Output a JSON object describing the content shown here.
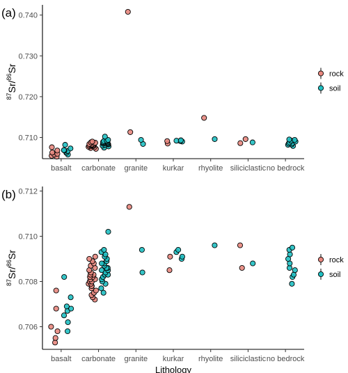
{
  "colors": {
    "rock": "#E8877E",
    "soil": "#1FBFC2",
    "outline": "#000000"
  },
  "chart_data": [
    {
      "panel_label": "(a)",
      "type": "scatter",
      "xlabel": "",
      "ylabel": {
        "super1": "87",
        "base1": "Sr/",
        "super2": "86",
        "base2": "Sr"
      },
      "categories": [
        "basalt",
        "carbonate",
        "granite",
        "kurkar",
        "rhyolite",
        "siliciclastic",
        "no bedrock"
      ],
      "ylim": [
        0.7048,
        0.7425
      ],
      "yticks": [
        "0.710",
        "0.720",
        "0.730",
        "0.740"
      ],
      "legend": {
        "position": "right",
        "entries": [
          "rock",
          "soil"
        ]
      },
      "grid": false,
      "series": [
        {
          "name": "rock",
          "points": [
            [
              "basalt",
              0.7053
            ],
            [
              "basalt",
              0.7055
            ],
            [
              "basalt",
              0.7058
            ],
            [
              "basalt",
              0.706
            ],
            [
              "basalt",
              0.7063
            ],
            [
              "basalt",
              0.7068
            ],
            [
              "basalt",
              0.7076
            ],
            [
              "carbonate",
              0.7072
            ],
            [
              "carbonate",
              0.7074
            ],
            [
              "carbonate",
              0.7076
            ],
            [
              "carbonate",
              0.7077
            ],
            [
              "carbonate",
              0.7078
            ],
            [
              "carbonate",
              0.7079
            ],
            [
              "carbonate",
              0.708
            ],
            [
              "carbonate",
              0.708
            ],
            [
              "carbonate",
              0.7081
            ],
            [
              "carbonate",
              0.7081
            ],
            [
              "carbonate",
              0.7082
            ],
            [
              "carbonate",
              0.7083
            ],
            [
              "carbonate",
              0.7084
            ],
            [
              "carbonate",
              0.7085
            ],
            [
              "carbonate",
              0.7087
            ],
            [
              "carbonate",
              0.7088
            ],
            [
              "carbonate",
              0.709
            ],
            [
              "granite",
              0.7113
            ],
            [
              "granite",
              0.7408
            ],
            [
              "kurkar",
              0.7085
            ],
            [
              "kurkar",
              0.7091
            ],
            [
              "rhyolite",
              0.7148
            ],
            [
              "siliciclastic",
              0.7086
            ],
            [
              "siliciclastic",
              0.7096
            ]
          ]
        },
        {
          "name": "soil",
          "points": [
            [
              "basalt",
              0.7058
            ],
            [
              "basalt",
              0.7062
            ],
            [
              "basalt",
              0.7065
            ],
            [
              "basalt",
              0.7067
            ],
            [
              "basalt",
              0.7068
            ],
            [
              "basalt",
              0.7069
            ],
            [
              "basalt",
              0.7073
            ],
            [
              "basalt",
              0.7082
            ],
            [
              "carbonate",
              0.7075
            ],
            [
              "carbonate",
              0.7078
            ],
            [
              "carbonate",
              0.708
            ],
            [
              "carbonate",
              0.7082
            ],
            [
              "carbonate",
              0.7083
            ],
            [
              "carbonate",
              0.7084
            ],
            [
              "carbonate",
              0.7085
            ],
            [
              "carbonate",
              0.7086
            ],
            [
              "carbonate",
              0.7086
            ],
            [
              "carbonate",
              0.7087
            ],
            [
              "carbonate",
              0.7088
            ],
            [
              "carbonate",
              0.7089
            ],
            [
              "carbonate",
              0.709
            ],
            [
              "carbonate",
              0.7091
            ],
            [
              "carbonate",
              0.7092
            ],
            [
              "carbonate",
              0.7094
            ],
            [
              "carbonate",
              0.7102
            ],
            [
              "granite",
              0.7084
            ],
            [
              "granite",
              0.7094
            ],
            [
              "kurkar",
              0.709
            ],
            [
              "kurkar",
              0.7091
            ],
            [
              "kurkar",
              0.7092
            ],
            [
              "kurkar",
              0.7093
            ],
            [
              "rhyolite",
              0.7096
            ],
            [
              "siliciclastic",
              0.7088
            ],
            [
              "no bedrock",
              0.7079
            ],
            [
              "no bedrock",
              0.7082
            ],
            [
              "no bedrock",
              0.7083
            ],
            [
              "no bedrock",
              0.7085
            ],
            [
              "no bedrock",
              0.7086
            ],
            [
              "no bedrock",
              0.7088
            ],
            [
              "no bedrock",
              0.709
            ],
            [
              "no bedrock",
              0.7092
            ],
            [
              "no bedrock",
              0.7094
            ],
            [
              "no bedrock",
              0.7095
            ]
          ]
        }
      ]
    },
    {
      "panel_label": "(b)",
      "type": "scatter",
      "xlabel": "Lithology",
      "ylabel": {
        "super1": "87",
        "base1": "Sr/",
        "super2": "86",
        "base2": "Sr"
      },
      "categories": [
        "basalt",
        "carbonate",
        "granite",
        "kurkar",
        "rhyolite",
        "siliciclastic",
        "no bedrock"
      ],
      "ylim": [
        0.705,
        0.7122
      ],
      "yticks": [
        "0.706",
        "0.708",
        "0.710",
        "0.712"
      ],
      "legend": {
        "position": "right",
        "entries": [
          "rock",
          "soil"
        ]
      },
      "grid": false,
      "series": [
        {
          "name": "rock",
          "points": [
            [
              "basalt",
              0.7053
            ],
            [
              "basalt",
              0.7055
            ],
            [
              "basalt",
              0.7058
            ],
            [
              "basalt",
              0.706
            ],
            [
              "basalt",
              0.7068
            ],
            [
              "basalt",
              0.7076
            ],
            [
              "carbonate",
              0.7072
            ],
            [
              "carbonate",
              0.7073
            ],
            [
              "carbonate",
              0.7074
            ],
            [
              "carbonate",
              0.7075
            ],
            [
              "carbonate",
              0.7076
            ],
            [
              "carbonate",
              0.7077
            ],
            [
              "carbonate",
              0.7078
            ],
            [
              "carbonate",
              0.7078
            ],
            [
              "carbonate",
              0.7079
            ],
            [
              "carbonate",
              0.7079
            ],
            [
              "carbonate",
              0.708
            ],
            [
              "carbonate",
              0.708
            ],
            [
              "carbonate",
              0.7081
            ],
            [
              "carbonate",
              0.7081
            ],
            [
              "carbonate",
              0.7082
            ],
            [
              "carbonate",
              0.7082
            ],
            [
              "carbonate",
              0.7083
            ],
            [
              "carbonate",
              0.7083
            ],
            [
              "carbonate",
              0.7084
            ],
            [
              "carbonate",
              0.7085
            ],
            [
              "carbonate",
              0.7086
            ],
            [
              "carbonate",
              0.7087
            ],
            [
              "carbonate",
              0.7088
            ],
            [
              "carbonate",
              0.7089
            ],
            [
              "carbonate",
              0.709
            ],
            [
              "carbonate",
              0.7091
            ],
            [
              "granite",
              0.7113
            ],
            [
              "kurkar",
              0.7085
            ],
            [
              "kurkar",
              0.7091
            ],
            [
              "siliciclastic",
              0.7086
            ],
            [
              "siliciclastic",
              0.7096
            ]
          ]
        },
        {
          "name": "soil",
          "points": [
            [
              "basalt",
              0.7058
            ],
            [
              "basalt",
              0.7062
            ],
            [
              "basalt",
              0.7065
            ],
            [
              "basalt",
              0.7067
            ],
            [
              "basalt",
              0.7068
            ],
            [
              "basalt",
              0.7069
            ],
            [
              "basalt",
              0.7073
            ],
            [
              "basalt",
              0.7082
            ],
            [
              "carbonate",
              0.7075
            ],
            [
              "carbonate",
              0.7077
            ],
            [
              "carbonate",
              0.7079
            ],
            [
              "carbonate",
              0.708
            ],
            [
              "carbonate",
              0.7081
            ],
            [
              "carbonate",
              0.7082
            ],
            [
              "carbonate",
              0.7083
            ],
            [
              "carbonate",
              0.7083
            ],
            [
              "carbonate",
              0.7084
            ],
            [
              "carbonate",
              0.7085
            ],
            [
              "carbonate",
              0.7085
            ],
            [
              "carbonate",
              0.7086
            ],
            [
              "carbonate",
              0.7086
            ],
            [
              "carbonate",
              0.7087
            ],
            [
              "carbonate",
              0.7088
            ],
            [
              "carbonate",
              0.7088
            ],
            [
              "carbonate",
              0.7089
            ],
            [
              "carbonate",
              0.709
            ],
            [
              "carbonate",
              0.7091
            ],
            [
              "carbonate",
              0.7092
            ],
            [
              "carbonate",
              0.7093
            ],
            [
              "carbonate",
              0.7094
            ],
            [
              "carbonate",
              0.7102
            ],
            [
              "granite",
              0.7084
            ],
            [
              "granite",
              0.7094
            ],
            [
              "kurkar",
              0.709
            ],
            [
              "kurkar",
              0.7091
            ],
            [
              "kurkar",
              0.7093
            ],
            [
              "kurkar",
              0.7094
            ],
            [
              "rhyolite",
              0.7096
            ],
            [
              "siliciclastic",
              0.7088
            ],
            [
              "no bedrock",
              0.7079
            ],
            [
              "no bedrock",
              0.7082
            ],
            [
              "no bedrock",
              0.7083
            ],
            [
              "no bedrock",
              0.7085
            ],
            [
              "no bedrock",
              0.7086
            ],
            [
              "no bedrock",
              0.7088
            ],
            [
              "no bedrock",
              0.709
            ],
            [
              "no bedrock",
              0.7092
            ],
            [
              "no bedrock",
              0.7094
            ],
            [
              "no bedrock",
              0.7095
            ]
          ]
        }
      ]
    }
  ]
}
